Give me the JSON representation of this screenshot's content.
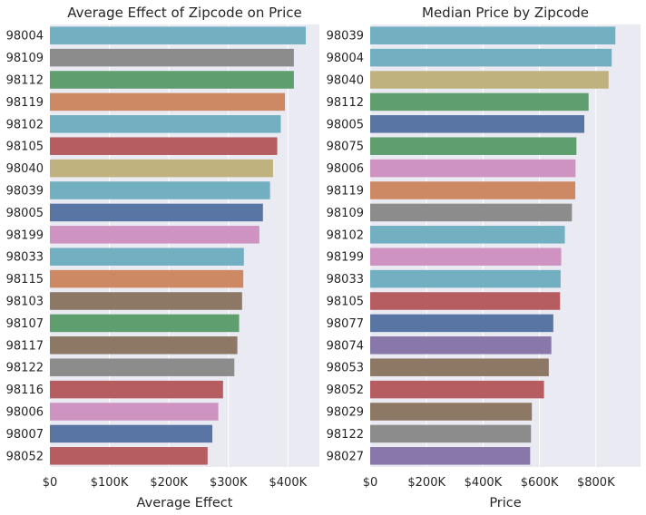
{
  "chart_data": [
    {
      "type": "bar",
      "orientation": "horizontal",
      "title": "Average Effect of Zipcode on Price",
      "xlabel": "Average Effect",
      "ylabel": "",
      "xlim": [
        0,
        430000
      ],
      "x_ticks": [
        0,
        100000,
        200000,
        300000,
        400000
      ],
      "x_tick_labels": [
        "$0",
        "$100K",
        "$200K",
        "$300K",
        "$400K"
      ],
      "grid": true,
      "categories": [
        "98004",
        "98109",
        "98112",
        "98119",
        "98102",
        "98105",
        "98040",
        "98039",
        "98005",
        "98199",
        "98033",
        "98115",
        "98103",
        "98107",
        "98117",
        "98122",
        "98116",
        "98006",
        "98007",
        "98052"
      ],
      "values": [
        430000,
        410000,
        410000,
        395000,
        388000,
        382000,
        375000,
        370000,
        358000,
        352000,
        326000,
        325000,
        323000,
        318000,
        315000,
        310000,
        291000,
        283000,
        273000,
        265000
      ],
      "colors": [
        "#72afc0",
        "#8c8c8c",
        "#5f9e6e",
        "#cc8963",
        "#72afc0",
        "#b55d60",
        "#c0b27e",
        "#72afc0",
        "#5975a4",
        "#cf93c2",
        "#72afc0",
        "#cc8963",
        "#8c7865",
        "#5f9e6e",
        "#8c7865",
        "#8c8c8c",
        "#b55d60",
        "#cf93c2",
        "#5975a4",
        "#b55d60"
      ]
    },
    {
      "type": "bar",
      "orientation": "horizontal",
      "title": "Median Price by Zipcode",
      "xlabel": "Price",
      "ylabel": "",
      "xlim": [
        0,
        910000
      ],
      "x_ticks": [
        0,
        200000,
        400000,
        600000,
        800000
      ],
      "x_tick_labels": [
        "$0",
        "$200K",
        "$400K",
        "$600K",
        "$800K"
      ],
      "grid": true,
      "categories": [
        "98039",
        "98004",
        "98040",
        "98112",
        "98005",
        "98075",
        "98006",
        "98119",
        "98109",
        "98102",
        "98199",
        "98033",
        "98105",
        "98077",
        "98074",
        "98053",
        "98052",
        "98029",
        "98122",
        "98027"
      ],
      "values": [
        869000,
        856000,
        845000,
        774000,
        759000,
        731000,
        728000,
        727000,
        715000,
        690000,
        677000,
        675000,
        673000,
        649000,
        642000,
        633000,
        616000,
        573000,
        570000,
        567000
      ],
      "colors": [
        "#72afc0",
        "#72afc0",
        "#c0b27e",
        "#5f9e6e",
        "#5975a4",
        "#5f9e6e",
        "#cf93c2",
        "#cc8963",
        "#8c8c8c",
        "#72afc0",
        "#cf93c2",
        "#72afc0",
        "#b55d60",
        "#5975a4",
        "#8877a9",
        "#8c7865",
        "#b55d60",
        "#8c7865",
        "#8c8c8c",
        "#8877a9"
      ]
    }
  ],
  "style": {
    "plot_background": "#eaeaf2",
    "grid_color": "#ffffff",
    "text_color": "#262626"
  }
}
